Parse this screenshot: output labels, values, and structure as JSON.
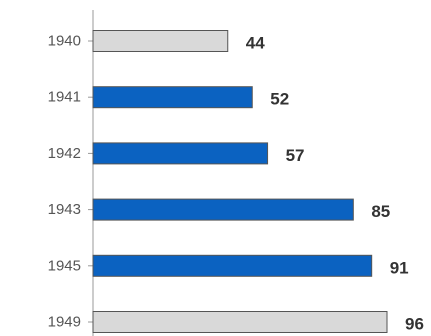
{
  "chart_data": {
    "type": "bar",
    "orientation": "horizontal",
    "categories": [
      "1940",
      "1941",
      "1942",
      "1943",
      "1945",
      "1949"
    ],
    "values": [
      44,
      52,
      57,
      85,
      91,
      96
    ],
    "bar_colors": [
      "#d9d9d9",
      "#0b62c1",
      "#0b62c1",
      "#0b62c1",
      "#0b62c1",
      "#d9d9d9"
    ],
    "data_labels": [
      "44",
      "52",
      "57",
      "85",
      "91",
      "96"
    ],
    "title": "",
    "xlabel": "",
    "ylabel": "",
    "xlim": [
      0,
      103
    ],
    "grid": false,
    "legend": "none"
  },
  "colors": {
    "highlight_bar": "#0b62c1",
    "muted_bar": "#d9d9d9",
    "bar_stroke": "#555555",
    "axis": "#999999"
  }
}
